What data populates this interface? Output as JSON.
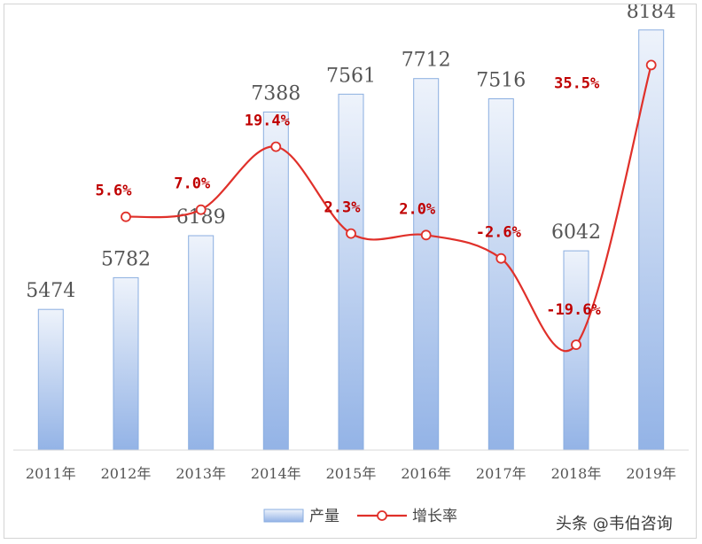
{
  "chart_data": {
    "type": "bar",
    "categories": [
      "2011年",
      "2012年",
      "2013年",
      "2014年",
      "2015年",
      "2016年",
      "2017年",
      "2018年",
      "2019年"
    ],
    "series": [
      {
        "name": "产量",
        "type": "bar",
        "axis": "left",
        "values": [
          5474,
          5782,
          6189,
          7388,
          7561,
          7712,
          7516,
          6042,
          8184
        ],
        "labels": [
          "5474",
          "5782",
          "6189",
          "7388",
          "7561",
          "7712",
          "7516",
          "6042",
          "8184"
        ]
      },
      {
        "name": "增长率",
        "type": "line",
        "axis": "right",
        "values": [
          null,
          5.6,
          7.0,
          19.4,
          2.3,
          2.0,
          -2.6,
          -19.6,
          35.5
        ],
        "labels": [
          "",
          "5.6%",
          "7.0%",
          "19.4%",
          "2.3%",
          "2.0%",
          "-2.6%",
          "-19.6%",
          "35.5%"
        ]
      }
    ],
    "legend": {
      "position": "bottom"
    },
    "grid": false,
    "colors": {
      "bar_fill_top": "#eef3fb",
      "bar_fill_bottom": "#93b3e6",
      "bar_stroke": "#8aaee0",
      "line": "#e0302a"
    }
  },
  "watermark": "头条 @韦伯咨询"
}
